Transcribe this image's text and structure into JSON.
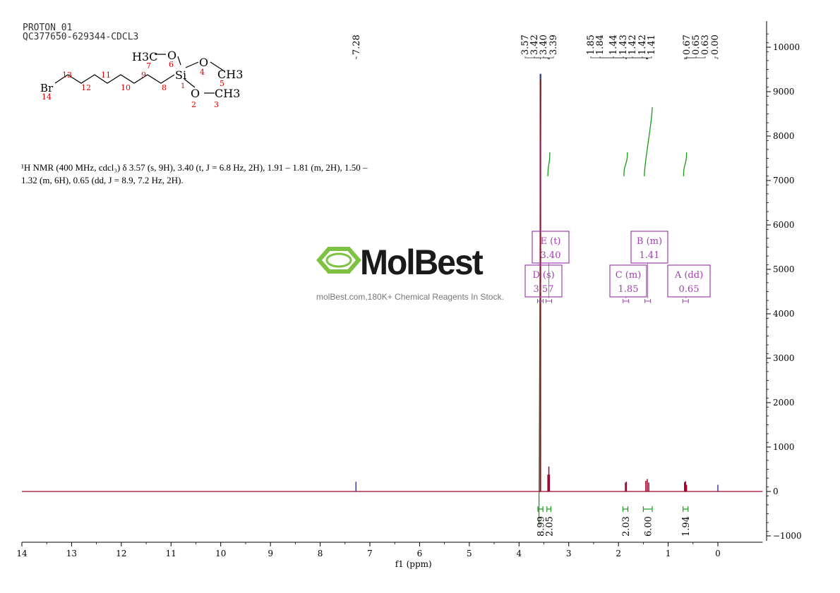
{
  "header": {
    "line1": "PROTON_01",
    "line2": "QC377650-629344-CDCL3"
  },
  "description": {
    "line1": "¹H NMR (400 MHz, cdcl₃) δ 3.57 (s, 9H), 3.40 (t, J = 6.8 Hz, 2H), 1.91 – 1.81 (m, 2H), 1.50 –",
    "line2": "1.32 (m, 6H), 0.65 (dd, J = 8.9, 7.2 Hz, 2H)."
  },
  "watermark": {
    "name": "MolBest",
    "tagline": "molBest.com,180K+ Chemical Reagents In Stock."
  },
  "molecule": {
    "atoms": [
      {
        "label": "Br",
        "num": "14"
      },
      {
        "label": "Si",
        "num": "1"
      },
      {
        "label": "O",
        "num": "6"
      },
      {
        "label": "O",
        "num": "4"
      },
      {
        "label": "O",
        "num": "2"
      },
      {
        "label": "H3C",
        "num": "7"
      },
      {
        "label": "CH3",
        "num": "5"
      },
      {
        "label": "CH3",
        "num": "3"
      }
    ],
    "chain_numbers": [
      "13",
      "12",
      "11",
      "10",
      "9",
      "8"
    ]
  },
  "colors": {
    "spectrum": "#a0002a",
    "peak_ticks": "#3a3aaa",
    "integral": "#1a9a1a",
    "multiplet_box": "#a040b0",
    "axis": "#000000"
  },
  "chart_data": {
    "type": "line",
    "title": "",
    "xlabel": "f1 (ppm)",
    "ylabel": "",
    "xlim": [
      14,
      -0.9
    ],
    "ylim": [
      -1000,
      10500
    ],
    "x_ticks": [
      14,
      13,
      12,
      11,
      10,
      9,
      8,
      7,
      6,
      5,
      4,
      3,
      2,
      1,
      0
    ],
    "y_ticks": [
      10000,
      9000,
      8000,
      7000,
      6000,
      5000,
      4000,
      3000,
      2000,
      1000,
      0,
      -1000
    ],
    "peak_labels": [
      "7.28",
      "3.57",
      "3.42",
      "3.40",
      "3.39",
      "1.85",
      "1.84",
      "1.44",
      "1.43",
      "1.42",
      "1.42",
      "1.41",
      "0.67",
      "0.65",
      "0.63",
      "0.00"
    ],
    "peak_label_ppm": [
      7.28,
      3.57,
      3.42,
      3.4,
      3.39,
      1.85,
      1.84,
      1.44,
      1.43,
      1.42,
      1.42,
      1.41,
      0.67,
      0.65,
      0.63,
      0.0
    ],
    "spectrum_peaks": [
      {
        "ppm": 7.28,
        "height": 220
      },
      {
        "ppm": 3.57,
        "height": 9400
      },
      {
        "ppm": 3.42,
        "height": 380
      },
      {
        "ppm": 3.4,
        "height": 560
      },
      {
        "ppm": 3.39,
        "height": 380
      },
      {
        "ppm": 1.86,
        "height": 200
      },
      {
        "ppm": 1.84,
        "height": 220
      },
      {
        "ppm": 1.45,
        "height": 240
      },
      {
        "ppm": 1.42,
        "height": 280
      },
      {
        "ppm": 1.39,
        "height": 200
      },
      {
        "ppm": 0.67,
        "height": 210
      },
      {
        "ppm": 0.65,
        "height": 230
      },
      {
        "ppm": 0.63,
        "height": 150
      },
      {
        "ppm": 0.0,
        "height": 150
      }
    ],
    "multiplets": [
      {
        "letter": "E",
        "mult": "(t)",
        "shift": "3.40",
        "ppm": 3.4
      },
      {
        "letter": "D",
        "mult": "(s)",
        "shift": "3.57",
        "ppm": 3.57
      },
      {
        "letter": "B",
        "mult": "(m)",
        "shift": "1.41",
        "ppm": 1.41
      },
      {
        "letter": "C",
        "mult": "(m)",
        "shift": "1.85",
        "ppm": 1.85
      },
      {
        "letter": "A",
        "mult": "(dd)",
        "shift": "0.65",
        "ppm": 0.65
      }
    ],
    "integrals": [
      {
        "value": "8.99",
        "from": 3.62,
        "to": 3.52
      },
      {
        "value": "2.05",
        "from": 3.44,
        "to": 3.36
      },
      {
        "value": "2.03",
        "from": 1.91,
        "to": 1.81
      },
      {
        "value": "6.00",
        "from": 1.5,
        "to": 1.32
      },
      {
        "value": "1.94",
        "from": 0.7,
        "to": 0.6
      }
    ]
  }
}
